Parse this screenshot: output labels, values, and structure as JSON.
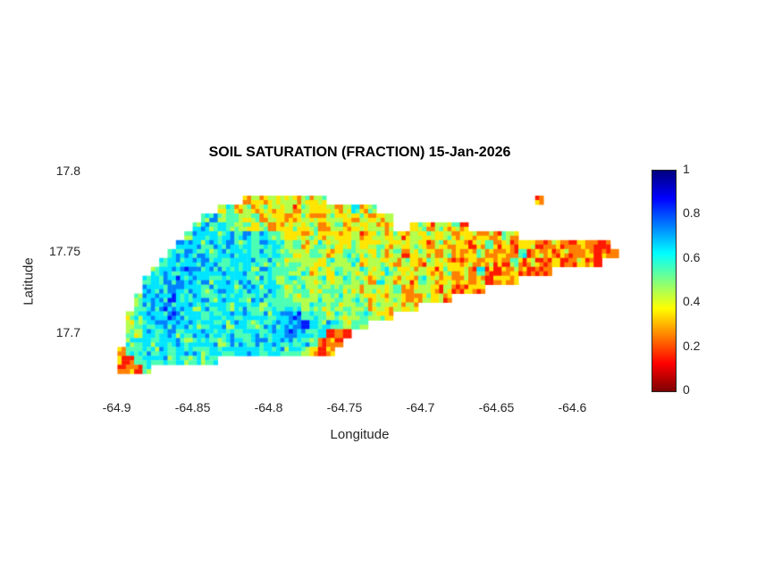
{
  "figure": {
    "background": "#ffffff"
  },
  "chart_data": {
    "type": "heatmap",
    "title": "SOIL SATURATION (FRACTION) 15-Jan-2026",
    "xlabel": "Longitude",
    "ylabel": "Latitude",
    "xlim": [
      -64.918,
      -64.562
    ],
    "ylim": [
      17.663,
      17.801
    ],
    "x_ticks": [
      -64.9,
      -64.85,
      -64.8,
      -64.75,
      -64.7,
      -64.65,
      -64.6
    ],
    "x_tick_labels": [
      "-64.9",
      "-64.85",
      "-64.8",
      "-64.75",
      "-64.7",
      "-64.65",
      "-64.6"
    ],
    "y_ticks": [
      17.7,
      17.75,
      17.8
    ],
    "y_tick_labels": [
      "17.7",
      "17.75",
      "17.8"
    ],
    "grid_lines": false,
    "legend_position": "right-colorbar",
    "colormap": "jet-reversed (1 = dark blue, 0.6 = cyan, 0.4 = yellow, 0.2 = orange, 0 = dark red)",
    "colorbar": {
      "min": 0,
      "max": 1,
      "ticks": [
        0,
        0.2,
        0.4,
        0.6,
        0.8,
        1
      ],
      "tick_labels": [
        "0",
        "0.2",
        "0.4",
        "0.6",
        "0.8",
        "1"
      ]
    },
    "grid": {
      "lon_origin": -64.905,
      "lat_top": 17.785,
      "cell_deg": 0.0055,
      "legend": "Each character is one grid cell; '.' = ocean (no data); digit d = soil saturation fraction of d/10+0.05 (e.g. '6' = 0.65 cyan, '3' = 0.35 yellow, '1' = 0.15 red). Rows run north to south, columns west to east across St. Croix.",
      "rows": [
        [
          "................",
          "3434343434",
          ".........................",
          "2",
          "............"
        ],
        [
          ".............",
          "4534243342433424534",
          "................................"
        ],
        [
          "...........",
          "56454342432343243424334",
          ".............................."
        ],
        [
          "..........",
          "565654434233434234243433",
          "..",
          "3424342",
          "....................."
        ],
        [
          ".........",
          "56665656565",
          "43434243342",
          "3434243434",
          "23323243",
          "..............."
        ],
        [
          "........",
          "666566656566",
          "545345434534",
          "4343432433",
          "3235232332",
          "23223212",
          "...."
        ],
        [
          ".......",
          "6676656666566",
          "554454345443",
          "4342343243",
          "2352322523",
          "323223122",
          "..."
        ],
        [
          "......",
          "56666766566656",
          "545443544534",
          "4334324332",
          "2323215232",
          "2312321",
          "....."
        ],
        [
          ".....",
          "566676666566566",
          "554534454354",
          "4543343243",
          "32521232122",
          "..........."
        ],
        [
          "....",
          "5666766656666566",
          "455445345443",
          "5434254332",
          "3231232",
          "..............."
        ],
        [
          "....",
          "6667666566656656",
          "545534554434",
          "4352343232",
          "232",
          "..................."
        ],
        [
          "...",
          "56667666656665666",
          "554545454543",
          "434323432",
          "......................."
        ],
        [
          "...",
          "56676665666566656",
          "565454545443",
          "43433",
          "..........................."
        ],
        [
          "..",
          "456667666566656665",
          "677565454454",
          "43",
          ".............................."
        ],
        [
          "..",
          "456676665666566566",
          "67786565454",
          "................................."
        ],
        [
          "..",
          "546666566656656656",
          "677656121",
          "..................................."
        ],
        [
          "..",
          "556566656665665666",
          "66565121",
          "...................................."
        ],
        [
          ".",
          "2556565666566566656",
          "6565212",
          "....................................."
        ],
        [
          ".",
          "215656565655",
          "..................................................."
        ],
        [
          ".",
          "1215",
          "..........................................................."
        ]
      ]
    }
  }
}
